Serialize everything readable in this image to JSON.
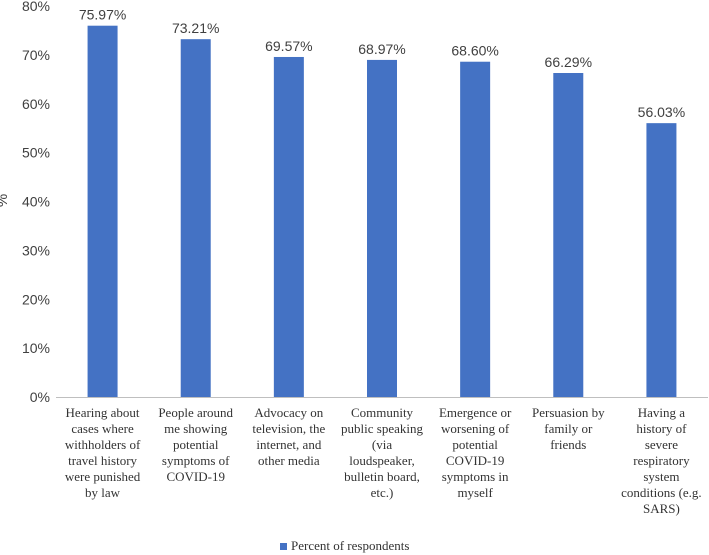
{
  "chart_data": {
    "type": "bar",
    "title": "",
    "xlabel": "",
    "ylabel": "%",
    "ylim": [
      0,
      80
    ],
    "yticks": [
      "0%",
      "10%",
      "20%",
      "30%",
      "40%",
      "50%",
      "60%",
      "70%",
      "80%"
    ],
    "categories": [
      "Hearing about cases where withholders of travel history were punished by law",
      "People around me showing potential symptoms of COVID-19",
      "Advocacy on television, the internet, and other media",
      "Community public speaking (via loudspeaker, bulletin board, etc.)",
      "Emergence or worsening of potential COVID-19 symptoms in myself",
      "Persuasion by family or friends",
      "Having a history of severe respiratory system conditions (e.g. SARS)"
    ],
    "series": [
      {
        "name": "Percent of respondents",
        "values": [
          75.97,
          73.21,
          69.57,
          68.97,
          68.6,
          66.29,
          56.03
        ],
        "labels": [
          "75.97%",
          "73.21%",
          "69.57%",
          "68.97%",
          "68.60%",
          "66.29%",
          "56.03%"
        ],
        "color": "#4472C4"
      }
    ],
    "legend_position": "bottom",
    "grid": false
  }
}
